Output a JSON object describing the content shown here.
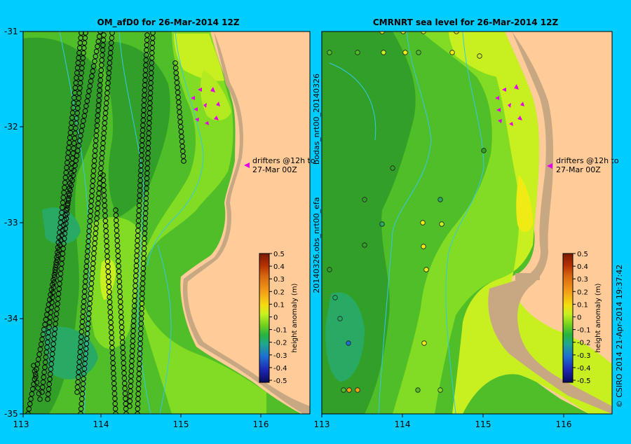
{
  "left": {
    "title": "OM_afD0 for 26-Mar-2014 12Z",
    "drifter_note": [
      "drifters @12h to",
      "27-Mar 00Z"
    ],
    "lat_ticks": [
      "-31",
      "-32",
      "-33",
      "-34",
      "-35"
    ],
    "lon_ticks": [
      "113",
      "114",
      "115",
      "116"
    ]
  },
  "right": {
    "title": "CMRNRT sea level  for 26-Mar-2014 12Z",
    "drifter_note": [
      "drifters @12h to",
      "27-Mar 00Z"
    ],
    "lon_ticks": [
      "113",
      "114",
      "115",
      "116"
    ],
    "side_label_top": "bodas_nrt00_20140326",
    "side_label_bottom": "20140326.obs_nrt00_efa"
  },
  "colorbar": {
    "ticks": [
      "0.5",
      "0.4",
      "0.3",
      "0.2",
      "0.1",
      "0",
      "-0.1",
      "-0.2",
      "-0.3",
      "-0.4",
      "-0.5"
    ],
    "label": "height anomaly (m)",
    "colors": [
      "#7a1a00",
      "#b33000",
      "#d96a10",
      "#f5a018",
      "#f5dc10",
      "#c8f020",
      "#78d21e",
      "#28b43c",
      "#20a88c",
      "#1e6ed2",
      "#1e28b4",
      "#0a0a5a"
    ]
  },
  "credit": "© CSIRO 2014   21-Apr-2014 19:37:42",
  "colors": {
    "frame": "#00ccff",
    "land": "#ffcc99",
    "shelf": "#c8a882",
    "dark_green": "#32a028",
    "mid_green": "#50be28",
    "light_green": "#82dc23",
    "lime": "#c8f020",
    "yellow": "#f0eb14",
    "teal": "#28aa64",
    "drifter_arrow": "#e600e6"
  }
}
